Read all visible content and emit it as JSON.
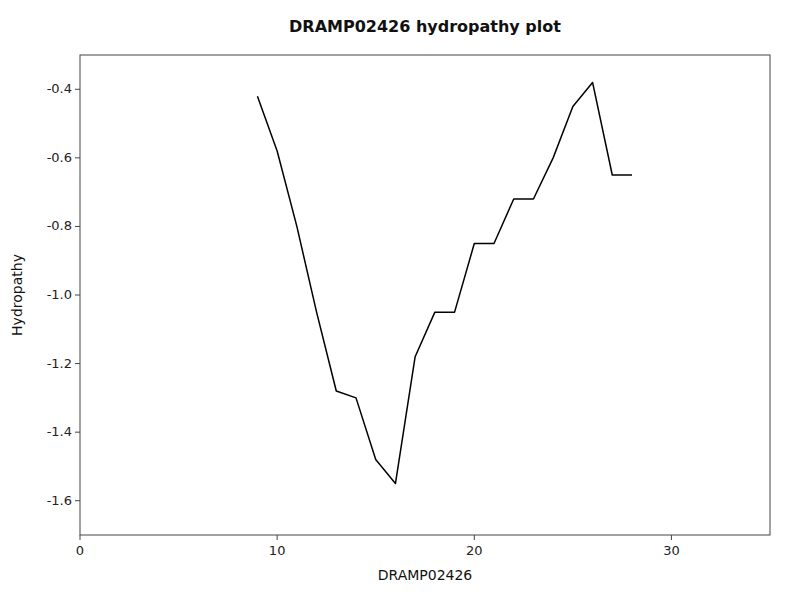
{
  "chart_data": {
    "type": "line",
    "title": "DRAMP02426 hydropathy plot",
    "xlabel": "DRAMP02426",
    "ylabel": "Hydropathy",
    "x": [
      9,
      10,
      11,
      12,
      13,
      14,
      15,
      16,
      17,
      18,
      19,
      20,
      21,
      22,
      23,
      24,
      25,
      26,
      27,
      28
    ],
    "values": [
      -0.42,
      -0.58,
      -0.8,
      -1.05,
      -1.28,
      -1.3,
      -1.48,
      -1.55,
      -1.18,
      -1.05,
      -1.05,
      -0.85,
      -0.85,
      -0.72,
      -0.72,
      -0.6,
      -0.45,
      -0.38,
      -0.65,
      -0.65
    ],
    "color": "#000000",
    "xlim": [
      0,
      35
    ],
    "ylim": [
      -1.7,
      -0.3
    ],
    "xticks": [
      0,
      10,
      20,
      30
    ],
    "yticks": [
      -1.6,
      -1.4,
      -1.2,
      {
        "value": -1.0,
        "label": "-1.0"
      },
      -0.8,
      -0.6,
      -0.4
    ],
    "grid": false
  }
}
